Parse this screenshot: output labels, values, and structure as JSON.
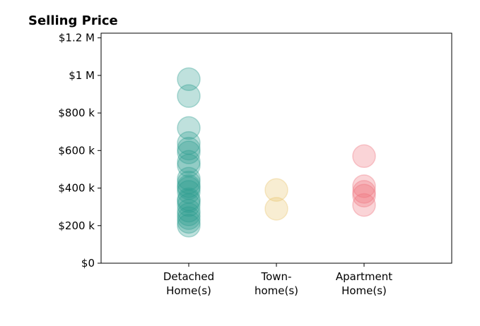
{
  "chart_data": {
    "type": "strip",
    "title": "Selling Price",
    "categories": [
      "Detached\nHome(s)",
      "Town-\nhome(s)",
      "Apartment\nHome(s)"
    ],
    "values": [
      [
        980000,
        890000,
        720000,
        640000,
        610000,
        590000,
        540000,
        520000,
        450000,
        430000,
        410000,
        400000,
        380000,
        340000,
        330000,
        310000,
        280000,
        260000,
        240000,
        220000,
        200000
      ],
      [
        390000,
        290000
      ],
      [
        570000,
        410000,
        380000,
        360000,
        310000
      ]
    ],
    "colors": [
      "#2a9d8f",
      "#e9c46a",
      "#ef6f7c"
    ],
    "ylim": [
      0,
      1225000
    ],
    "yticks": [
      {
        "value": 0,
        "label": "$0"
      },
      {
        "value": 200000,
        "label": "$200 k"
      },
      {
        "value": 400000,
        "label": "$400 k"
      },
      {
        "value": 600000,
        "label": "$600 k"
      },
      {
        "value": 800000,
        "label": "$800 k"
      },
      {
        "value": 1000000,
        "label": "$1 M"
      },
      {
        "value": 1200000,
        "label": "$1.2 M"
      }
    ]
  }
}
